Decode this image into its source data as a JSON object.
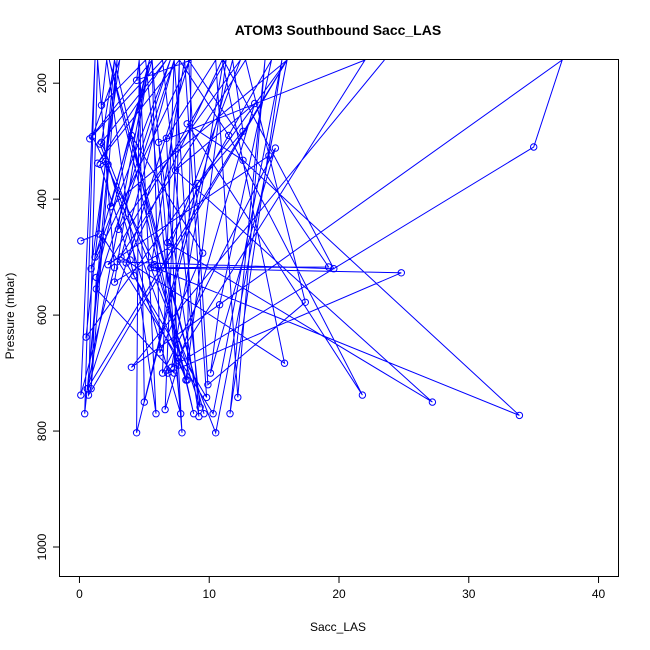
{
  "chart_data": {
    "type": "line",
    "title": "ATOM3 Southbound Sacc_LAS",
    "xlabel": "Sacc_LAS",
    "ylabel": "Pressure (mbar)",
    "xlim": [
      -1.5,
      41.5
    ],
    "ylim": [
      1050,
      160
    ],
    "y_reversed": true,
    "x_ticks": [
      0,
      10,
      20,
      30,
      40
    ],
    "y_ticks": [
      200,
      400,
      600,
      800,
      1000
    ],
    "x_tick_labels": [
      "0",
      "10",
      "20",
      "30",
      "40"
    ],
    "y_tick_labels": [
      "200",
      "400",
      "600",
      "800",
      "1000"
    ],
    "grid": false,
    "legend": "none",
    "color": "#0000ff",
    "series": [
      {
        "points": [
          [
            0.1,
            472
          ],
          [
            1.5,
            460
          ],
          [
            2.7,
            160
          ],
          [
            2.0,
            335
          ],
          [
            1.6,
            340
          ],
          [
            3.9,
            505
          ],
          [
            4.2,
            532
          ],
          [
            8.3,
            712
          ],
          [
            8.6,
            160
          ],
          [
            4.4,
            195
          ],
          [
            4.6,
            160
          ],
          [
            5.0,
            750
          ],
          [
            11.8,
            160
          ],
          [
            12.6,
            283
          ],
          [
            9.1,
            373
          ],
          [
            4.4,
            803
          ],
          [
            4.6,
            160
          ],
          [
            5.9,
            770
          ],
          [
            2.1,
            160
          ],
          [
            1.7,
            238
          ],
          [
            5.1,
            160
          ],
          [
            7.8,
            770
          ],
          [
            2.2,
            340
          ],
          [
            0.6,
            727
          ],
          [
            16.0,
            160
          ],
          [
            10.5,
            803
          ],
          [
            1.7,
            302
          ],
          [
            2.7,
            160
          ],
          [
            8.8,
            770
          ],
          [
            2.3,
            160
          ],
          [
            9.6,
            770
          ],
          [
            4.0,
            290
          ],
          [
            9.5,
            493
          ],
          [
            6.2,
            665
          ],
          [
            5.6,
            160
          ],
          [
            7.9,
            803
          ],
          [
            6.7,
            295
          ],
          [
            10.5,
            160
          ],
          [
            12.2,
            742
          ],
          [
            14.3,
            160
          ],
          [
            11.6,
            770
          ],
          [
            15.6,
            160
          ],
          [
            10.3,
            770
          ],
          [
            1.8,
            465
          ],
          [
            0.4,
            770
          ],
          [
            1.2,
            160
          ],
          [
            0.1,
            738
          ],
          [
            2.7,
            518
          ],
          [
            1.4,
            160
          ],
          [
            0.7,
            738
          ],
          [
            16.0,
            160
          ],
          [
            0.5,
            638
          ],
          [
            2.9,
            160
          ],
          [
            0.9,
            727
          ],
          [
            1.3,
            535
          ],
          [
            5.4,
            160
          ],
          [
            0.6,
            727
          ],
          [
            8.5,
            160
          ],
          [
            0.9,
            520
          ],
          [
            3.1,
            160
          ],
          [
            1.0,
            292
          ],
          [
            5.8,
            513
          ],
          [
            9.3,
            759
          ],
          [
            6.4,
            160
          ],
          [
            0.8,
            296
          ],
          [
            5.6,
            160
          ],
          [
            1.2,
            500
          ],
          [
            7.0,
            160
          ],
          [
            1.3,
            555
          ],
          [
            7.3,
            700
          ],
          [
            7.7,
            160
          ],
          [
            1.4,
            338
          ],
          [
            6.7,
            160
          ],
          [
            1.6,
            305
          ],
          [
            8.2,
            712
          ],
          [
            11.3,
            160
          ],
          [
            2.2,
            513
          ],
          [
            14.6,
            325
          ],
          [
            16.0,
            160
          ],
          [
            2.4,
            413
          ],
          [
            5.4,
            160
          ],
          [
            2.7,
            543
          ],
          [
            7.0,
            482
          ],
          [
            12.4,
            160
          ],
          [
            3.0,
            452
          ],
          [
            7.3,
            160
          ],
          [
            3.2,
            500
          ],
          [
            15.8,
            683
          ],
          [
            11.0,
            160
          ],
          [
            3.6,
            510
          ],
          [
            9.8,
            742
          ],
          [
            8.1,
            160
          ],
          [
            5.5,
            518
          ],
          [
            24.8,
            527
          ],
          [
            6.8,
            700
          ],
          [
            22.0,
            160
          ],
          [
            6.1,
            302
          ],
          [
            9.2,
            775
          ],
          [
            7.3,
            160
          ],
          [
            6.4,
            700
          ],
          [
            15.1,
            312
          ],
          [
            10.1,
            700
          ],
          [
            10.8,
            582
          ],
          [
            14.8,
            160
          ],
          [
            6.8,
            475
          ],
          [
            27.2,
            750
          ],
          [
            7.4,
            350
          ],
          [
            13.5,
            235
          ],
          [
            6.6,
            763
          ],
          [
            7.7,
            160
          ],
          [
            11.5,
            290
          ],
          [
            21.8,
            738
          ],
          [
            8.3,
            270
          ],
          [
            12.6,
            333
          ],
          [
            33.9,
            773
          ],
          [
            5.8,
            518
          ],
          [
            19.2,
            517
          ],
          [
            8.4,
            160
          ],
          [
            9.9,
            720
          ],
          [
            17.4,
            578
          ],
          [
            12.8,
            160
          ],
          [
            2.9,
            508
          ],
          [
            19.6,
            520
          ],
          [
            11.1,
            160
          ],
          [
            7.1,
            690
          ],
          [
            35.0,
            310
          ],
          [
            37.2,
            160
          ],
          [
            4.0,
            690
          ],
          [
            23.5,
            160
          ]
        ]
      }
    ]
  }
}
